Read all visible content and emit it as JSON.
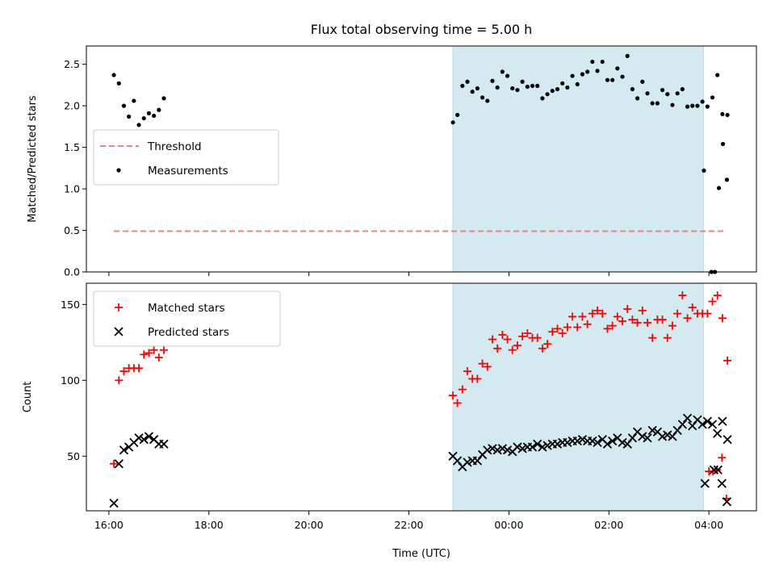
{
  "chart_data": {
    "title": "Flux total observing time = 5.00 h",
    "xlabel": "Time (UTC)",
    "x_unit": "hours since 16:00 UTC",
    "xlim": [
      -0.45,
      12.95
    ],
    "xticks": [
      {
        "x": 0,
        "label": "16:00"
      },
      {
        "x": 2,
        "label": "18:00"
      },
      {
        "x": 4,
        "label": "20:00"
      },
      {
        "x": 6,
        "label": "22:00"
      },
      {
        "x": 8,
        "label": "00:00"
      },
      {
        "x": 10,
        "label": "02:00"
      },
      {
        "x": 12,
        "label": "04:00"
      }
    ],
    "shaded_region": {
      "x_start": 6.88,
      "x_end": 11.89,
      "color": "#d3eaf1"
    },
    "panels": [
      {
        "type": "scatter",
        "ylabel": "Matched/Predicted stars",
        "ylim": [
          0,
          2.72
        ],
        "yticks": [
          "0.0",
          "0.5",
          "1.0",
          "1.5",
          "2.0",
          "2.5"
        ],
        "legend_position": "center-left",
        "threshold": {
          "name": "Threshold",
          "y": 0.49,
          "x_start": 0.1,
          "x_end": 12.35,
          "color": "#f08080"
        },
        "series": [
          {
            "name": "Measurements",
            "color": "#000000",
            "marker": "dot",
            "points": [
              [
                0.1,
                2.37
              ],
              [
                0.2,
                2.27
              ],
              [
                0.3,
                2.0
              ],
              [
                0.4,
                1.87
              ],
              [
                0.5,
                2.06
              ],
              [
                0.6,
                1.77
              ],
              [
                0.7,
                1.85
              ],
              [
                0.8,
                1.91
              ],
              [
                0.9,
                1.88
              ],
              [
                1.0,
                1.95
              ],
              [
                1.1,
                2.09
              ],
              [
                6.88,
                1.8
              ],
              [
                6.97,
                1.89
              ],
              [
                7.07,
                2.24
              ],
              [
                7.17,
                2.29
              ],
              [
                7.27,
                2.17
              ],
              [
                7.37,
                2.21
              ],
              [
                7.47,
                2.1
              ],
              [
                7.57,
                2.06
              ],
              [
                7.67,
                2.3
              ],
              [
                7.77,
                2.22
              ],
              [
                7.87,
                2.41
              ],
              [
                7.97,
                2.36
              ],
              [
                8.07,
                2.21
              ],
              [
                8.17,
                2.19
              ],
              [
                8.27,
                2.29
              ],
              [
                8.37,
                2.23
              ],
              [
                8.47,
                2.24
              ],
              [
                8.57,
                2.24
              ],
              [
                8.67,
                2.09
              ],
              [
                8.77,
                2.14
              ],
              [
                8.87,
                2.18
              ],
              [
                8.97,
                2.2
              ],
              [
                9.07,
                2.27
              ],
              [
                9.17,
                2.22
              ],
              [
                9.27,
                2.36
              ],
              [
                9.37,
                2.26
              ],
              [
                9.47,
                2.38
              ],
              [
                9.57,
                2.41
              ],
              [
                9.67,
                2.53
              ],
              [
                9.77,
                2.42
              ],
              [
                9.87,
                2.53
              ],
              [
                9.97,
                2.31
              ],
              [
                10.07,
                2.31
              ],
              [
                10.17,
                2.45
              ],
              [
                10.27,
                2.35
              ],
              [
                10.37,
                2.6
              ],
              [
                10.47,
                2.2
              ],
              [
                10.57,
                2.09
              ],
              [
                10.67,
                2.29
              ],
              [
                10.77,
                2.15
              ],
              [
                10.87,
                2.03
              ],
              [
                10.97,
                2.03
              ],
              [
                11.07,
                2.19
              ],
              [
                11.17,
                2.14
              ],
              [
                11.27,
                2.01
              ],
              [
                11.37,
                2.15
              ],
              [
                11.47,
                2.2
              ],
              [
                11.57,
                1.99
              ],
              [
                11.67,
                2.0
              ],
              [
                11.77,
                2.0
              ],
              [
                11.87,
                2.05
              ],
              [
                11.97,
                1.99
              ],
              [
                12.07,
                2.1
              ],
              [
                12.17,
                2.37
              ],
              [
                12.27,
                1.9
              ],
              [
                12.37,
                1.89
              ],
              [
                11.9,
                1.22
              ],
              [
                12.05,
                0.0
              ],
              [
                12.12,
                0.0
              ],
              [
                12.2,
                1.01
              ],
              [
                12.28,
                1.54
              ],
              [
                12.36,
                1.11
              ]
            ]
          }
        ]
      },
      {
        "type": "scatter",
        "ylabel": "Count",
        "ylim": [
          14,
          164
        ],
        "yticks": [
          "50",
          "100",
          "150"
        ],
        "legend_position": "upper-left",
        "series": [
          {
            "name": "Matched stars",
            "color": "#ff0000",
            "marker": "plus",
            "points": [
              [
                0.1,
                45
              ],
              [
                0.2,
                100
              ],
              [
                0.3,
                106
              ],
              [
                0.4,
                108
              ],
              [
                0.5,
                108
              ],
              [
                0.6,
                108
              ],
              [
                0.7,
                117
              ],
              [
                0.8,
                118
              ],
              [
                0.9,
                120
              ],
              [
                1.0,
                115
              ],
              [
                1.1,
                120
              ],
              [
                6.88,
                90
              ],
              [
                6.97,
                85
              ],
              [
                7.07,
                94
              ],
              [
                7.17,
                106
              ],
              [
                7.27,
                101
              ],
              [
                7.37,
                101
              ],
              [
                7.47,
                111
              ],
              [
                7.57,
                109
              ],
              [
                7.67,
                127
              ],
              [
                7.77,
                121
              ],
              [
                7.87,
                130
              ],
              [
                7.97,
                127
              ],
              [
                8.07,
                120
              ],
              [
                8.17,
                123
              ],
              [
                8.27,
                129
              ],
              [
                8.37,
                131
              ],
              [
                8.47,
                128
              ],
              [
                8.57,
                128
              ],
              [
                8.67,
                121
              ],
              [
                8.77,
                124
              ],
              [
                8.87,
                132
              ],
              [
                8.97,
                134
              ],
              [
                9.07,
                131
              ],
              [
                9.17,
                135
              ],
              [
                9.27,
                142
              ],
              [
                9.37,
                135
              ],
              [
                9.47,
                142
              ],
              [
                9.57,
                137
              ],
              [
                9.67,
                144
              ],
              [
                9.77,
                146
              ],
              [
                9.87,
                144
              ],
              [
                9.97,
                134
              ],
              [
                10.07,
                136
              ],
              [
                10.17,
                142
              ],
              [
                10.27,
                139
              ],
              [
                10.37,
                147
              ],
              [
                10.47,
                140
              ],
              [
                10.57,
                138
              ],
              [
                10.67,
                146
              ],
              [
                10.77,
                138
              ],
              [
                10.87,
                128
              ],
              [
                10.97,
                140
              ],
              [
                11.07,
                140
              ],
              [
                11.17,
                128
              ],
              [
                11.27,
                136
              ],
              [
                11.37,
                144
              ],
              [
                11.47,
                156
              ],
              [
                11.57,
                141
              ],
              [
                11.67,
                148
              ],
              [
                11.77,
                144
              ],
              [
                11.87,
                144
              ],
              [
                11.97,
                144
              ],
              [
                12.07,
                152
              ],
              [
                12.17,
                156
              ],
              [
                12.27,
                141
              ],
              [
                12.37,
                113
              ],
              [
                12.0,
                40
              ],
              [
                12.08,
                40
              ],
              [
                12.16,
                41
              ],
              [
                12.26,
                49
              ],
              [
                12.35,
                22
              ]
            ]
          },
          {
            "name": "Predicted stars",
            "color": "#000000",
            "marker": "x",
            "points": [
              [
                0.1,
                19
              ],
              [
                0.2,
                45
              ],
              [
                0.3,
                54
              ],
              [
                0.4,
                56
              ],
              [
                0.5,
                59
              ],
              [
                0.6,
                62
              ],
              [
                0.7,
                61
              ],
              [
                0.8,
                63
              ],
              [
                0.9,
                61
              ],
              [
                1.0,
                58
              ],
              [
                1.1,
                58
              ],
              [
                6.88,
                50
              ],
              [
                6.97,
                47
              ],
              [
                7.07,
                43
              ],
              [
                7.17,
                46
              ],
              [
                7.27,
                47
              ],
              [
                7.37,
                47
              ],
              [
                7.47,
                51
              ],
              [
                7.57,
                54
              ],
              [
                7.67,
                55
              ],
              [
                7.77,
                54
              ],
              [
                7.87,
                55
              ],
              [
                7.97,
                54
              ],
              [
                8.07,
                53
              ],
              [
                8.17,
                56
              ],
              [
                8.27,
                55
              ],
              [
                8.37,
                56
              ],
              [
                8.47,
                56
              ],
              [
                8.57,
                58
              ],
              [
                8.67,
                56
              ],
              [
                8.77,
                57
              ],
              [
                8.87,
                58
              ],
              [
                8.97,
                58
              ],
              [
                9.07,
                59
              ],
              [
                9.17,
                59
              ],
              [
                9.27,
                60
              ],
              [
                9.37,
                60
              ],
              [
                9.47,
                61
              ],
              [
                9.57,
                60
              ],
              [
                9.67,
                60
              ],
              [
                9.77,
                59
              ],
              [
                9.87,
                61
              ],
              [
                9.97,
                58
              ],
              [
                10.07,
                60
              ],
              [
                10.17,
                62
              ],
              [
                10.27,
                59
              ],
              [
                10.37,
                58
              ],
              [
                10.47,
                62
              ],
              [
                10.57,
                66
              ],
              [
                10.67,
                63
              ],
              [
                10.77,
                62
              ],
              [
                10.87,
                67
              ],
              [
                10.97,
                66
              ],
              [
                11.07,
                63
              ],
              [
                11.17,
                64
              ],
              [
                11.27,
                63
              ],
              [
                11.37,
                67
              ],
              [
                11.47,
                71
              ],
              [
                11.57,
                75
              ],
              [
                11.67,
                70
              ],
              [
                11.77,
                74
              ],
              [
                11.87,
                71
              ],
              [
                11.97,
                73
              ],
              [
                12.07,
                71
              ],
              [
                12.17,
                65
              ],
              [
                12.27,
                73
              ],
              [
                12.37,
                61
              ],
              [
                11.92,
                32
              ],
              [
                12.1,
                41
              ],
              [
                12.18,
                41
              ],
              [
                12.26,
                32
              ],
              [
                12.36,
                20
              ]
            ]
          }
        ]
      }
    ]
  }
}
